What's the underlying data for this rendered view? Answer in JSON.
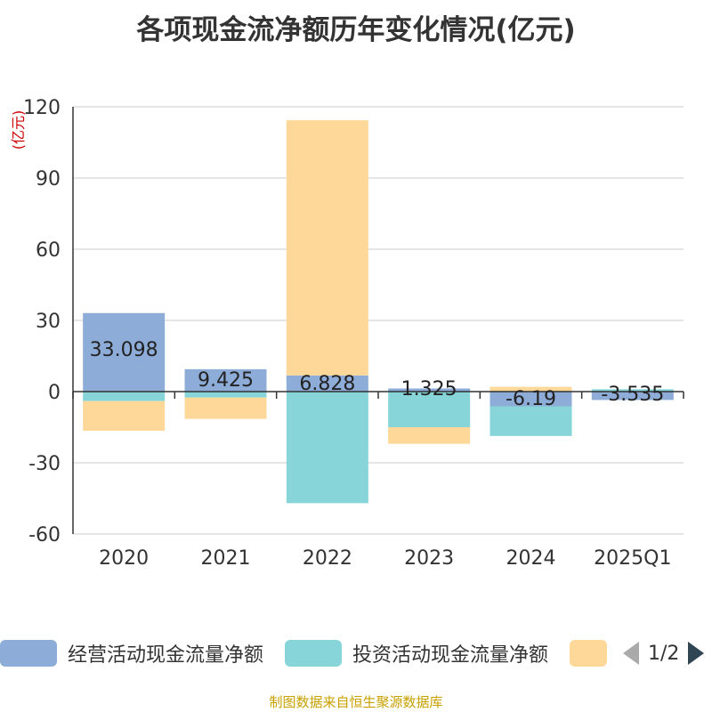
{
  "title": "各项现金流净额历年变化情况(亿元)",
  "source": "制图数据来自恒生聚源数据库",
  "legend": {
    "items": [
      {
        "label": "经营活动现金流量净额",
        "color": "#8eacd8"
      },
      {
        "label": "投资活动现金流量净额",
        "color": "#87d5d8"
      },
      {
        "label": "",
        "color": "#fed898"
      }
    ],
    "pager": "1/2"
  },
  "chart_data": {
    "type": "bar",
    "stacked": true,
    "ylabel": "(亿元)",
    "ylim": [
      -60,
      120
    ],
    "yticks": [
      -60,
      -30,
      0,
      30,
      60,
      90,
      120
    ],
    "grid": true,
    "categories": [
      "2020",
      "2021",
      "2022",
      "2023",
      "2024",
      "2025Q1"
    ],
    "series": [
      {
        "name": "经营活动现金流量净额",
        "color": "#8eacd8",
        "values": [
          33.098,
          9.425,
          6.828,
          1.325,
          -6.19,
          -3.535
        ],
        "labels": [
          "33.098",
          "9.425",
          "6.828",
          "1.325",
          "-6.19",
          "-3.535"
        ]
      },
      {
        "name": "投资活动现金流量净额",
        "color": "#87d5d8",
        "values": [
          -4,
          -2.5,
          -47,
          -15,
          -12.5,
          1
        ]
      },
      {
        "name": "",
        "color": "#fed898",
        "values": [
          -12.5,
          -9,
          107.5,
          -7,
          2,
          0
        ]
      }
    ]
  }
}
